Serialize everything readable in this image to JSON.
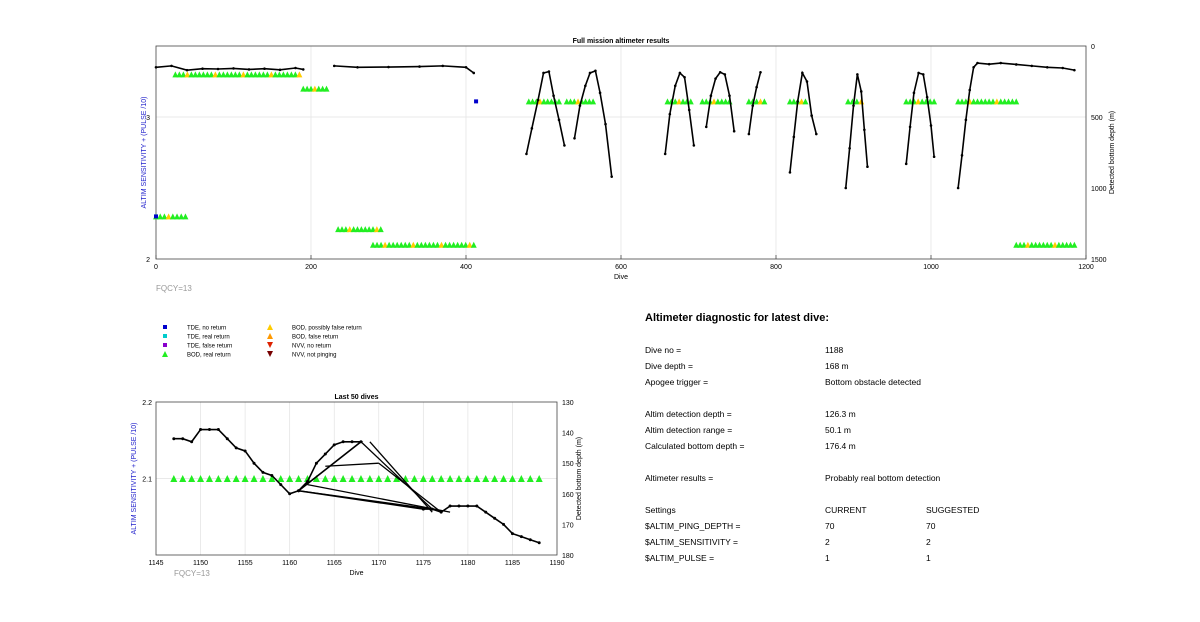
{
  "colors": {
    "tde_no": "#0000cc",
    "tde_real": "#00cccc",
    "tde_false": "#8800cc",
    "bod_real": "#22ee22",
    "bod_possibly_false": "#ffcc00",
    "bod_false": "#ff9900",
    "nvv_no_return": "#dd2200",
    "nvv_not_pinging": "#770000",
    "depth_line": "#000000",
    "left_axis": "#2222cc",
    "fqcy": "#999999"
  },
  "chart_data": [
    {
      "type": "line",
      "title": "Full mission altimeter results",
      "xlabel": "Dive",
      "ylabel_left": "ALTIM SENSITIVITY + (PULSE /10)",
      "ylabel_right": "Detected bottom depth (m)",
      "xlim": [
        0,
        1200
      ],
      "ylim_left": [
        2,
        3.5
      ],
      "ylim_right": [
        1500,
        0
      ],
      "xticks": [
        "0",
        "200",
        "400",
        "600",
        "800",
        "1000",
        "1200"
      ],
      "yticks_left": [
        "2",
        "3"
      ],
      "yticks_right": [
        "0",
        "500",
        "1000",
        "1500"
      ],
      "grid": true,
      "annotation": "FQCY=13",
      "series": [
        {
          "name": "Detected bottom depth",
          "axis": "right",
          "segments": [
            [
              [
                0,
                150
              ],
              [
                20,
                140
              ],
              [
                40,
                170
              ],
              [
                60,
                160
              ],
              [
                80,
                162
              ],
              [
                100,
                158
              ],
              [
                120,
                165
              ],
              [
                140,
                160
              ],
              [
                160,
                168
              ],
              [
                180,
                155
              ],
              [
                190,
                165
              ]
            ],
            [
              [
                230,
                140
              ],
              [
                260,
                150
              ],
              [
                300,
                148
              ],
              [
                340,
                145
              ],
              [
                370,
                140
              ],
              [
                400,
                150
              ],
              [
                410,
                190
              ]
            ],
            [
              [
                478,
                760
              ],
              [
                485,
                580
              ],
              [
                493,
                380
              ],
              [
                500,
                190
              ],
              [
                507,
                180
              ],
              [
                513,
                350
              ],
              [
                520,
                520
              ],
              [
                527,
                700
              ]
            ],
            [
              [
                540,
                650
              ],
              [
                547,
                420
              ],
              [
                554,
                280
              ],
              [
                560,
                190
              ],
              [
                567,
                175
              ],
              [
                573,
                330
              ],
              [
                580,
                550
              ],
              [
                588,
                920
              ]
            ],
            [
              [
                657,
                760
              ],
              [
                663,
                480
              ],
              [
                670,
                280
              ],
              [
                676,
                190
              ],
              [
                682,
                220
              ],
              [
                688,
                450
              ],
              [
                694,
                700
              ]
            ],
            [
              [
                710,
                570
              ],
              [
                716,
                350
              ],
              [
                722,
                230
              ],
              [
                728,
                185
              ],
              [
                734,
                200
              ],
              [
                740,
                350
              ],
              [
                746,
                600
              ]
            ],
            [
              [
                765,
                620
              ],
              [
                770,
                420
              ],
              [
                775,
                290
              ],
              [
                780,
                185
              ]
            ],
            [
              [
                818,
                890
              ],
              [
                823,
                640
              ],
              [
                828,
                390
              ],
              [
                834,
                190
              ],
              [
                840,
                250
              ],
              [
                846,
                490
              ],
              [
                852,
                620
              ]
            ],
            [
              [
                890,
                1000
              ],
              [
                895,
                720
              ],
              [
                900,
                420
              ],
              [
                905,
                200
              ],
              [
                910,
                320
              ],
              [
                914,
                590
              ],
              [
                918,
                850
              ]
            ],
            [
              [
                968,
                830
              ],
              [
                973,
                570
              ],
              [
                978,
                330
              ],
              [
                984,
                190
              ],
              [
                990,
                200
              ],
              [
                995,
                360
              ],
              [
                1000,
                560
              ],
              [
                1004,
                780
              ]
            ],
            [
              [
                1035,
                1000
              ],
              [
                1040,
                770
              ],
              [
                1045,
                520
              ],
              [
                1050,
                310
              ],
              [
                1055,
                150
              ],
              [
                1060,
                120
              ],
              [
                1075,
                128
              ],
              [
                1090,
                120
              ],
              [
                1110,
                130
              ],
              [
                1130,
                140
              ],
              [
                1150,
                150
              ],
              [
                1170,
                155
              ],
              [
                1185,
                170
              ]
            ]
          ]
        },
        {
          "name": "BOD, real return",
          "axis": "left",
          "segments": [
            [
              25,
              185
            ],
            [
              190,
              220
            ],
            [
              235,
              290
            ],
            [
              280,
              410
            ],
            [
              1110,
              1185
            ],
            [
              0,
              38
            ],
            [
              530,
              564
            ],
            [
              481,
              520
            ],
            [
              660,
              690
            ],
            [
              705,
              740
            ],
            [
              765,
              785
            ],
            [
              818,
              838
            ],
            [
              893,
              910
            ],
            [
              968,
              1004
            ],
            [
              1035,
              1110
            ]
          ],
          "levels": [
            3.3,
            3.2,
            2.21,
            2.1,
            2.1,
            2.3,
            3.11,
            3.11,
            3.11,
            3.11,
            3.11,
            3.11,
            3.11,
            3.11,
            3.11
          ]
        },
        {
          "name": "TDE, no return",
          "axis": "left",
          "points": [
            [
              413,
              3.11
            ],
            [
              0,
              2.3
            ]
          ]
        }
      ]
    },
    {
      "type": "line",
      "title": "Last 50 dives",
      "xlabel": "Dive",
      "ylabel_left": "ALTIM SENSITIVITY + (PULSE /10)",
      "ylabel_right": "Detected bottom depth (m)",
      "xlim": [
        1145,
        1190
      ],
      "ylim_left": [
        2.0,
        2.2
      ],
      "ylim_right": [
        180,
        130
      ],
      "xticks": [
        "1145",
        "1150",
        "1155",
        "1160",
        "1165",
        "1170",
        "1175",
        "1180",
        "1185",
        "1190"
      ],
      "yticks_left": [
        "2.1",
        "2.2"
      ],
      "yticks_right": [
        "130",
        "140",
        "150",
        "160",
        "170",
        "180"
      ],
      "grid": true,
      "annotation": "FQCY=13",
      "series": [
        {
          "name": "Detected bottom depth",
          "axis": "right",
          "points": [
            [
              1147,
              142
            ],
            [
              1148,
              142
            ],
            [
              1149,
              143
            ],
            [
              1150,
              139
            ],
            [
              1151,
              139
            ],
            [
              1152,
              139
            ],
            [
              1153,
              142
            ],
            [
              1154,
              145
            ],
            [
              1155,
              146
            ],
            [
              1156,
              150
            ],
            [
              1157,
              153
            ],
            [
              1158,
              154
            ],
            [
              1159,
              157
            ],
            [
              1160,
              160
            ],
            [
              1161,
              159
            ],
            [
              1162,
              156
            ],
            [
              1163,
              150
            ],
            [
              1164,
              147
            ],
            [
              1165,
              144
            ],
            [
              1166,
              143
            ],
            [
              1167,
              143
            ],
            [
              1168,
              143
            ],
            [
              1161,
              159
            ],
            [
              1175,
              165
            ],
            [
              1176,
              165
            ],
            [
              1177,
              166
            ],
            [
              1178,
              164
            ],
            [
              1179,
              164
            ],
            [
              1180,
              164
            ],
            [
              1181,
              164
            ],
            [
              1182,
              166
            ],
            [
              1183,
              168
            ],
            [
              1184,
              170
            ],
            [
              1185,
              173
            ],
            [
              1186,
              174
            ],
            [
              1187,
              175
            ],
            [
              1188,
              176
            ]
          ]
        },
        {
          "name": "BOD, real return",
          "axis": "left",
          "x": [
            1147,
            1148,
            1149,
            1150,
            1151,
            1152,
            1153,
            1154,
            1155,
            1156,
            1157,
            1158,
            1159,
            1160,
            1161,
            1162,
            1163,
            1164,
            1165,
            1166,
            1167,
            1168,
            1169,
            1170,
            1171,
            1172,
            1173,
            1174,
            1175,
            1176,
            1177,
            1178,
            1179,
            1180,
            1181,
            1182,
            1183,
            1184,
            1185,
            1186,
            1187,
            1188
          ],
          "y": 2.1
        }
      ]
    }
  ],
  "legend": [
    {
      "label": "TDE, no return",
      "marker": "square",
      "color_key": "tde_no"
    },
    {
      "label": "TDE, real return",
      "marker": "square",
      "color_key": "tde_real"
    },
    {
      "label": "TDE, false return",
      "marker": "square",
      "color_key": "tde_false"
    },
    {
      "label": "BOD, real return",
      "marker": "triangle-up",
      "color_key": "bod_real"
    },
    {
      "label": "BOD, possibly false return",
      "marker": "triangle-up",
      "color_key": "bod_possibly_false"
    },
    {
      "label": "BOD, false return",
      "marker": "triangle-up",
      "color_key": "bod_false"
    },
    {
      "label": "NVV, no return",
      "marker": "triangle-down",
      "color_key": "nvv_no_return"
    },
    {
      "label": "NVV, not pinging",
      "marker": "triangle-down",
      "color_key": "nvv_not_pinging"
    }
  ],
  "diagnostic": {
    "title": "Altimeter diagnostic for latest dive:",
    "dive_no_label": "Dive no =",
    "dive_no": "1188",
    "dive_depth_label": "Dive depth =",
    "dive_depth": "168 m",
    "apogee_label": "Apogee trigger =",
    "apogee": "Bottom obstacle detected",
    "det_depth_label": "Altim detection depth =",
    "det_depth": "126.3 m",
    "det_range_label": "Altim detection range =",
    "det_range": "50.1 m",
    "calc_depth_label": "Calculated bottom depth =",
    "calc_depth": "176.4 m",
    "results_label": "Altimeter results =",
    "results": "Probably real bottom detection",
    "settings_label": "Settings",
    "current_label": "CURRENT",
    "suggested_label": "SUGGESTED",
    "ping_label": "$ALTIM_PING_DEPTH =",
    "ping_current": "70",
    "ping_suggested": "70",
    "sens_label": "$ALTIM_SENSITIVITY =",
    "sens_current": "2",
    "sens_suggested": "2",
    "pulse_label": "$ALTIM_PULSE =",
    "pulse_current": "1",
    "pulse_suggested": "1"
  }
}
